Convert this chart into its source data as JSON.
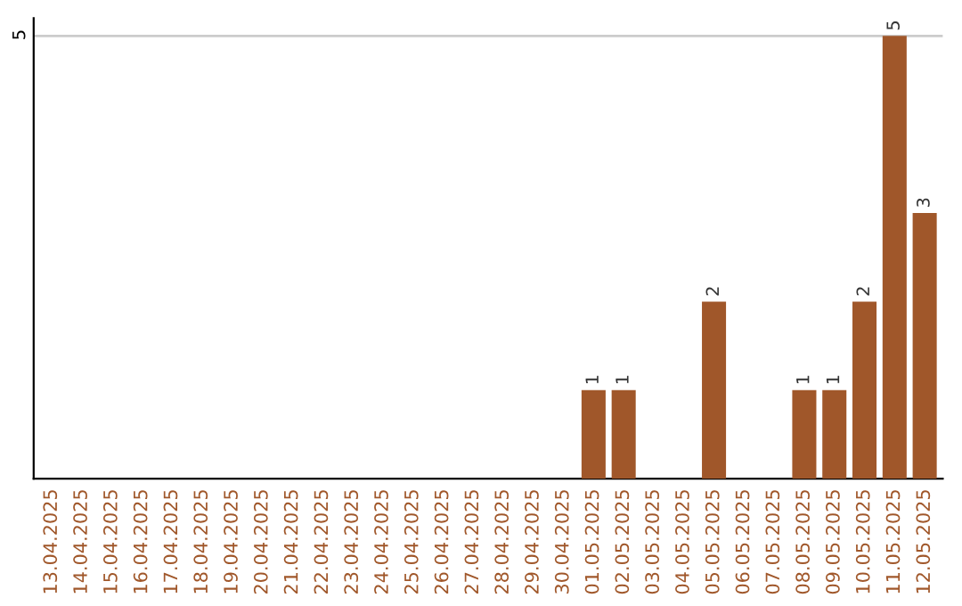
{
  "chart_data": {
    "type": "bar",
    "categories": [
      "13.04.2025",
      "14.04.2025",
      "15.04.2025",
      "16.04.2025",
      "17.04.2025",
      "18.04.2025",
      "19.04.2025",
      "20.04.2025",
      "21.04.2025",
      "22.04.2025",
      "23.04.2025",
      "24.04.2025",
      "25.04.2025",
      "26.04.2025",
      "27.04.2025",
      "28.04.2025",
      "29.04.2025",
      "30.04.2025",
      "01.05.2025",
      "02.05.2025",
      "03.05.2025",
      "04.05.2025",
      "05.05.2025",
      "06.05.2025",
      "07.05.2025",
      "08.05.2025",
      "09.05.2025",
      "10.05.2025",
      "11.05.2025",
      "12.05.2025"
    ],
    "values": [
      null,
      null,
      null,
      null,
      null,
      null,
      null,
      null,
      null,
      null,
      null,
      null,
      null,
      null,
      null,
      null,
      null,
      null,
      1,
      1,
      null,
      null,
      2,
      null,
      null,
      1,
      1,
      2,
      5,
      3
    ],
    "color": "#a0572a",
    "ylim": [
      0,
      5.2
    ],
    "yticks": [
      5
    ],
    "grid": "y",
    "data_labels": true,
    "legend": false
  }
}
